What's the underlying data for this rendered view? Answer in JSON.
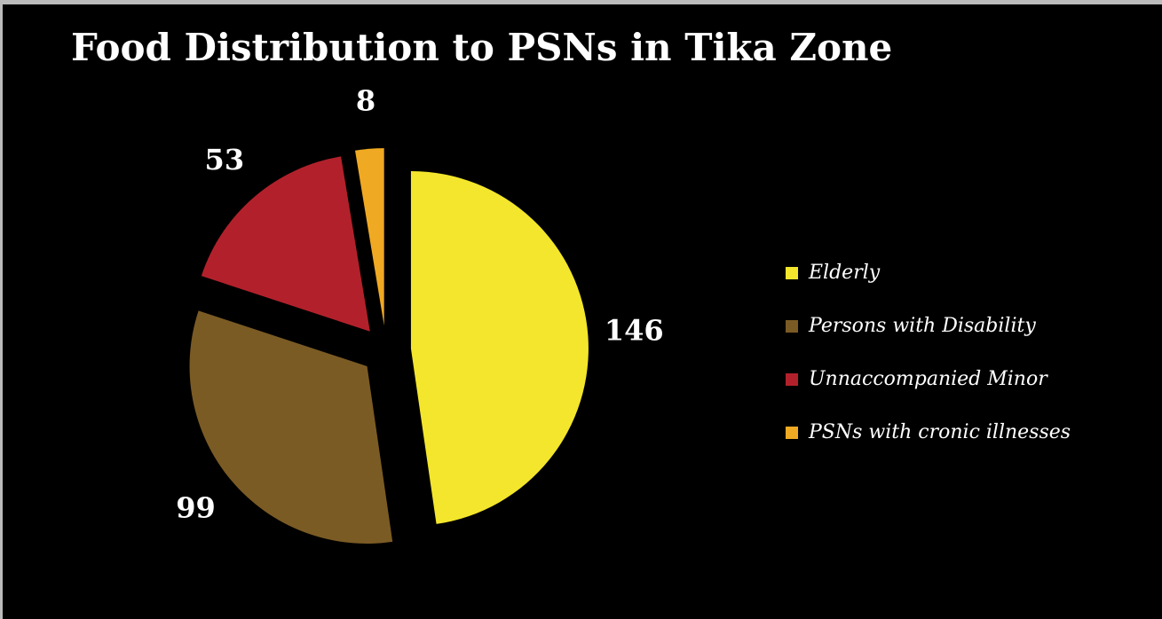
{
  "chart_data": {
    "type": "pie",
    "title": "Food Distribution to PSNs in Tika Zone",
    "categories": [
      "Elderly",
      "Persons with Disability",
      "Unnaccompanied Minor",
      "PSNs with cronic illnesses"
    ],
    "values": [
      146,
      99,
      53,
      8
    ],
    "colors": [
      "#f3e62c",
      "#7b5b24",
      "#b2212b",
      "#f0a922"
    ],
    "legend": "right"
  }
}
